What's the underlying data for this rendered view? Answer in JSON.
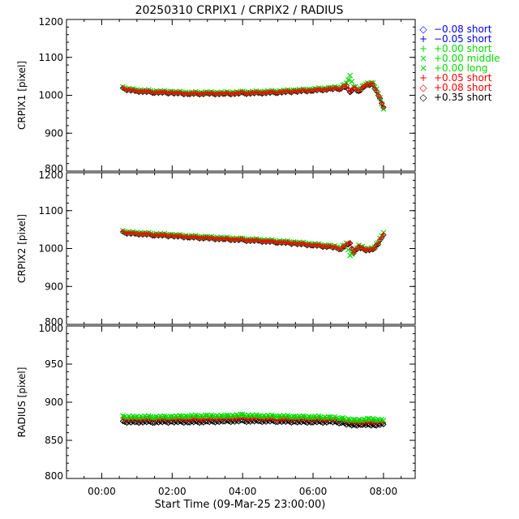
{
  "title": "20250310 CRPIX1 / CRPIX2 / RADIUS",
  "xlabel": "Start Time (09-Mar-25 23:00:00)",
  "xticks": [
    "00:00",
    "02:00",
    "04:00",
    "06:00",
    "08:00"
  ],
  "xtick_hours": [
    0,
    2,
    4,
    6,
    8
  ],
  "legend": [
    {
      "symbol": "◇",
      "label": "−0.08 short",
      "color": "#0000ff"
    },
    {
      "symbol": "+",
      "label": "−0.05 short",
      "color": "#0000ff"
    },
    {
      "symbol": "+",
      "label": "+0.00 short",
      "color": "#00dd00"
    },
    {
      "symbol": "×",
      "label": "+0.00 middle",
      "color": "#00dd00"
    },
    {
      "symbol": "×",
      "label": "+0.00 long",
      "color": "#00dd00"
    },
    {
      "symbol": "+",
      "label": "+0.05 short",
      "color": "#ff0000"
    },
    {
      "symbol": "◇",
      "label": "+0.08 short",
      "color": "#ff0000"
    },
    {
      "symbol": "◇",
      "label": "+0.35 short",
      "color": "#000000"
    }
  ],
  "chart_data": [
    {
      "type": "scatter",
      "ylabel": "CRPIX1 [pixel]",
      "xlim": [
        -1,
        8.9
      ],
      "ylim": [
        800,
        1200
      ],
      "yticks": [
        "800",
        "900",
        "1000",
        "1100",
        "1200"
      ],
      "ytick_values": [
        800,
        900,
        1000,
        1100,
        1200
      ],
      "series": [
        {
          "name": "+0.35 short",
          "color": "#000000",
          "marker": "diamond",
          "x": [
            0.6,
            1.0,
            1.5,
            2.0,
            2.5,
            3.0,
            3.5,
            4.0,
            4.5,
            5.0,
            5.5,
            6.0,
            6.5,
            6.8,
            6.95,
            7.05,
            7.15,
            7.3,
            7.5,
            7.7,
            7.85,
            8.0
          ],
          "y": [
            1017,
            1011,
            1008,
            1006,
            1004,
            1004,
            1004,
            1005,
            1006,
            1008,
            1010,
            1013,
            1016,
            1018,
            1023,
            1008,
            1020,
            1010,
            1027,
            1027,
            1000,
            968
          ]
        },
        {
          "name": "+0.00 middle",
          "color": "#00dd00",
          "marker": "x",
          "x": [
            0.6,
            1.0,
            1.5,
            2.0,
            2.5,
            3.0,
            3.5,
            4.0,
            4.5,
            5.0,
            5.5,
            6.0,
            6.5,
            6.8,
            6.95,
            7.05,
            7.15,
            7.3,
            7.5,
            7.7,
            7.85,
            8.0
          ],
          "y": [
            1020,
            1014,
            1011,
            1009,
            1007,
            1007,
            1007,
            1008,
            1009,
            1011,
            1013,
            1016,
            1019,
            1022,
            1030,
            1052,
            1025,
            1015,
            1031,
            1031,
            1005,
            964
          ]
        },
        {
          "name": "+0.05 short",
          "color": "#ff0000",
          "marker": "plus",
          "x": [
            0.6,
            1.0,
            1.5,
            2.0,
            2.5,
            3.0,
            3.5,
            4.0,
            4.5,
            5.0,
            5.5,
            6.0,
            6.5,
            6.8,
            6.95,
            7.05,
            7.15,
            7.3,
            7.5,
            7.7,
            7.85,
            8.0
          ],
          "y": [
            1018,
            1012,
            1009,
            1007,
            1005,
            1005,
            1005,
            1006,
            1007,
            1009,
            1011,
            1014,
            1017,
            1019,
            1026,
            1010,
            1022,
            1012,
            1029,
            1029,
            1002,
            970
          ]
        }
      ]
    },
    {
      "type": "scatter",
      "ylabel": "CRPIX2 [pixel]",
      "xlim": [
        -1,
        8.9
      ],
      "ylim": [
        800,
        1200
      ],
      "yticks": [
        "800",
        "900",
        "1000",
        "1100",
        "1200"
      ],
      "ytick_values": [
        800,
        900,
        1000,
        1100,
        1200
      ],
      "series": [
        {
          "name": "+0.35 short",
          "color": "#000000",
          "marker": "diamond",
          "x": [
            0.6,
            1.0,
            1.5,
            2.0,
            2.5,
            3.0,
            3.5,
            4.0,
            4.5,
            5.0,
            5.5,
            6.0,
            6.5,
            6.8,
            6.95,
            7.05,
            7.15,
            7.3,
            7.5,
            7.7,
            7.85,
            8.0
          ],
          "y": [
            1042,
            1039,
            1036,
            1033,
            1030,
            1027,
            1025,
            1022,
            1020,
            1017,
            1013,
            1009,
            1004,
            999,
            1008,
            1014,
            990,
            1004,
            996,
            996,
            1012,
            1036
          ]
        },
        {
          "name": "+0.00 middle",
          "color": "#00dd00",
          "marker": "x",
          "x": [
            0.6,
            1.0,
            1.5,
            2.0,
            2.5,
            3.0,
            3.5,
            4.0,
            4.5,
            5.0,
            5.5,
            6.0,
            6.5,
            6.8,
            6.95,
            7.05,
            7.15,
            7.3,
            7.5,
            7.7,
            7.85,
            8.0
          ],
          "y": [
            1045,
            1042,
            1039,
            1036,
            1033,
            1030,
            1028,
            1025,
            1023,
            1020,
            1016,
            1012,
            1007,
            1002,
            1012,
            982,
            993,
            1008,
            999,
            999,
            1016,
            1042
          ]
        },
        {
          "name": "+0.05 short",
          "color": "#ff0000",
          "marker": "plus",
          "x": [
            0.6,
            1.0,
            1.5,
            2.0,
            2.5,
            3.0,
            3.5,
            4.0,
            4.5,
            5.0,
            5.5,
            6.0,
            6.5,
            6.8,
            6.95,
            7.05,
            7.15,
            7.3,
            7.5,
            7.7,
            7.85,
            8.0
          ],
          "y": [
            1043,
            1040,
            1037,
            1034,
            1031,
            1028,
            1026,
            1023,
            1021,
            1018,
            1014,
            1010,
            1005,
            1000,
            1010,
            1016,
            991,
            1006,
            997,
            997,
            1014,
            1038
          ]
        }
      ]
    },
    {
      "type": "scatter",
      "ylabel": "RADIUS [pixel]",
      "xlim": [
        -1,
        8.9
      ],
      "ylim": [
        800,
        1000
      ],
      "yticks": [
        "800",
        "850",
        "900",
        "950",
        "1000"
      ],
      "ytick_values": [
        800,
        850,
        900,
        950,
        1000
      ],
      "series": [
        {
          "name": "+0.35 short",
          "color": "#000000",
          "marker": "diamond",
          "x": [
            0.6,
            1.0,
            1.5,
            2.0,
            2.5,
            3.0,
            3.5,
            4.0,
            4.5,
            5.0,
            5.5,
            6.0,
            6.5,
            6.8,
            7.0,
            7.2,
            7.4,
            7.6,
            7.8,
            8.0
          ],
          "y": [
            874,
            874,
            874,
            874,
            874,
            874,
            875,
            875,
            875,
            875,
            874,
            874,
            874,
            873,
            871,
            870,
            871,
            870,
            870,
            871
          ]
        },
        {
          "name": "+0.05 short",
          "color": "#ff0000",
          "marker": "plus",
          "x": [
            0.6,
            1.0,
            1.5,
            2.0,
            2.5,
            3.0,
            3.5,
            4.0,
            4.5,
            5.0,
            5.5,
            6.0,
            6.5,
            6.8,
            7.0,
            7.2,
            7.4,
            7.6,
            7.8,
            8.0
          ],
          "y": [
            878,
            878,
            878,
            878,
            878,
            878,
            879,
            879,
            879,
            878,
            878,
            878,
            877,
            877,
            875,
            874,
            874,
            874,
            874,
            874
          ]
        },
        {
          "name": "+0.00 middle",
          "color": "#00dd00",
          "marker": "x",
          "x": [
            0.6,
            1.0,
            1.5,
            2.0,
            2.5,
            3.0,
            3.5,
            4.0,
            4.5,
            5.0,
            5.5,
            6.0,
            6.5,
            6.8,
            7.0,
            7.2,
            7.4,
            7.6,
            7.8,
            8.0
          ],
          "y": [
            881,
            881,
            881,
            881,
            882,
            882,
            882,
            883,
            882,
            882,
            881,
            881,
            880,
            879,
            877,
            877,
            877,
            878,
            877,
            876
          ]
        }
      ]
    }
  ]
}
